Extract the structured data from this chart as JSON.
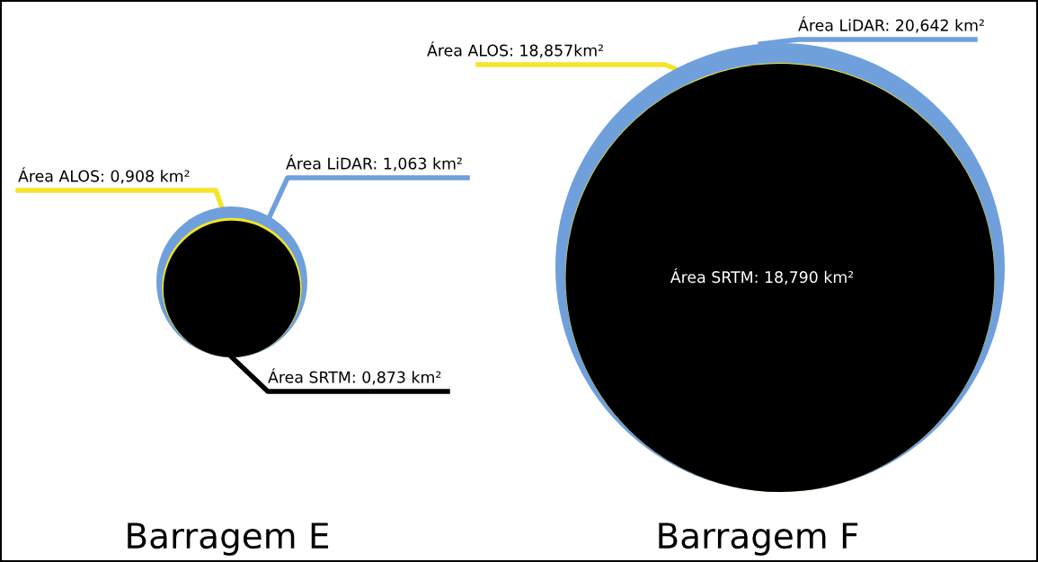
{
  "chart_data": {
    "type": "other",
    "categories": [
      "Barragem E",
      "Barragem F"
    ],
    "series": [
      {
        "color": "#6fa0dc",
        "values": [
          1.063,
          20.642
        ],
        "value_labels": [
          "Área LiDAR: 1,063 km²",
          "Área LiDAR: 20,642 km²"
        ]
      },
      {
        "color": "#f5e52a",
        "values": [
          0.908,
          18.857
        ],
        "value_labels": [
          "Área ALOS: 0,908 km²",
          "Área ALOS: 18,857km²"
        ]
      },
      {
        "color": "#000000",
        "values": [
          0.873,
          18.79
        ],
        "value_labels": [
          "Área SRTM: 0,873 km²",
          "Área SRTM: 18,790 km²"
        ]
      }
    ]
  }
}
